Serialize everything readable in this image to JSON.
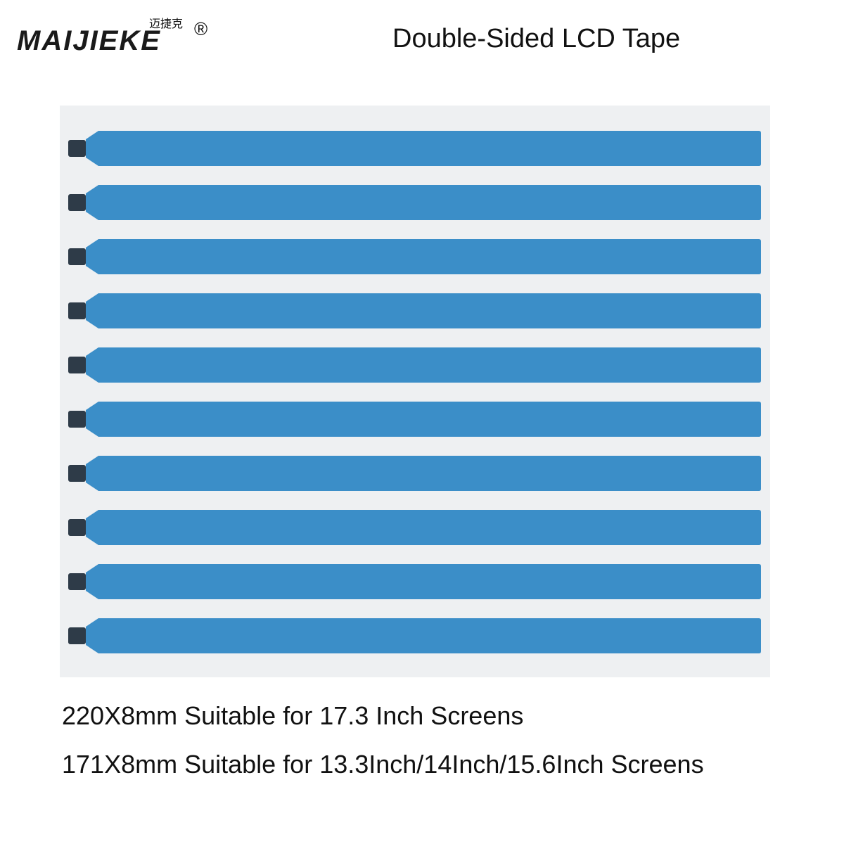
{
  "header": {
    "brand": "MAIJIEKE",
    "brand_chinese": "迈捷克",
    "registered": "®",
    "title": "Double-Sided LCD Tape"
  },
  "specs": [
    "220X8mm Suitable for 17.3 Inch Screens",
    "171X8mm Suitable for 13.3Inch/14Inch/15.6Inch Screens"
  ]
}
